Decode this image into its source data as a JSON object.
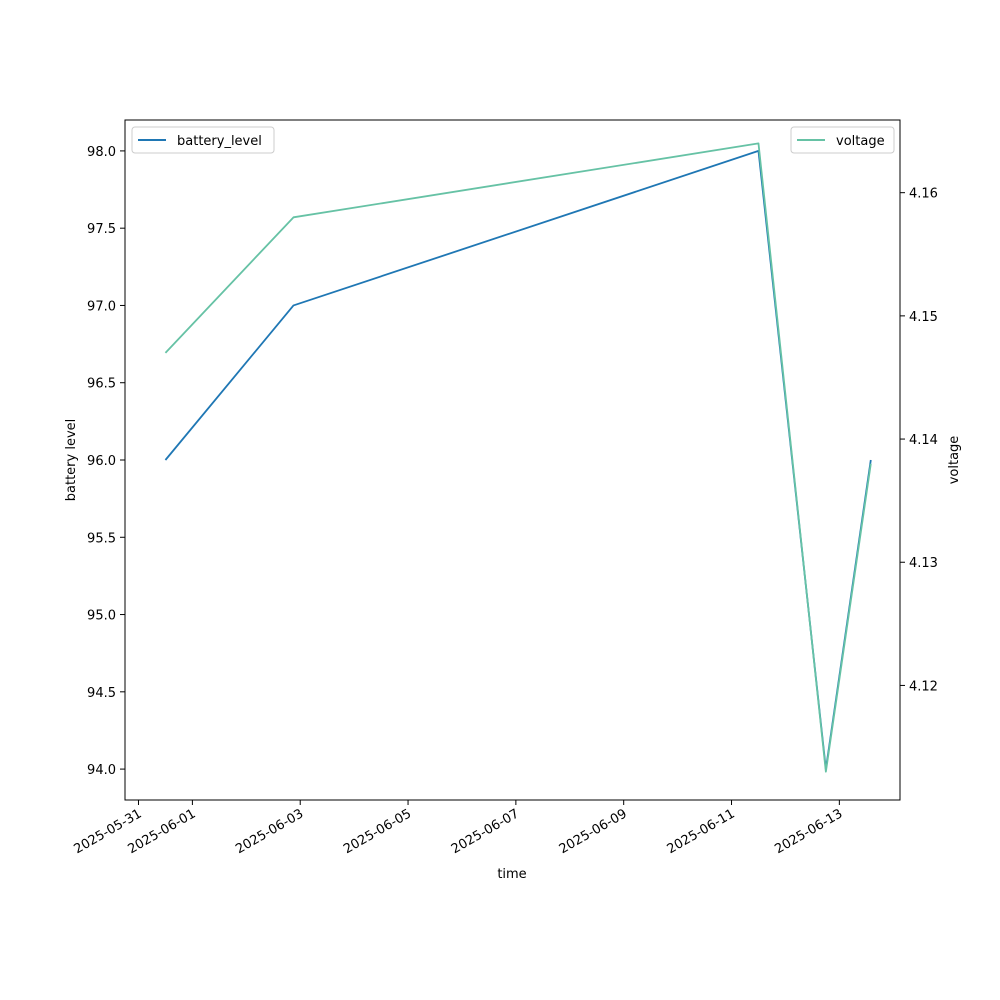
{
  "chart_data": {
    "type": "line",
    "xlabel": "time",
    "ylabel": "battery level",
    "y2label": "voltage",
    "x_ticks": [
      "2025-05-31",
      "2025-06-01",
      "2025-06-03",
      "2025-06-05",
      "2025-06-07",
      "2025-06-09",
      "2025-06-11",
      "2025-06-13"
    ],
    "xlim": [
      "2025-05-30 18:00",
      "2025-06-14 03:00"
    ],
    "y_ticks": [
      94.0,
      94.5,
      95.0,
      95.5,
      96.0,
      96.5,
      97.0,
      97.5,
      98.0
    ],
    "ylim": [
      93.8,
      98.2
    ],
    "y2_ticks": [
      4.12,
      4.13,
      4.14,
      4.15,
      4.16
    ],
    "y2lim": [
      4.1107,
      4.1659
    ],
    "grid": false,
    "series": [
      {
        "name": "battery_level",
        "axis": "left",
        "color": "#1f77b4",
        "legend": "upper-left",
        "x": [
          "2025-05-31 12:00",
          "2025-06-02 21:00",
          "2025-06-11 12:00",
          "2025-06-12 18:00",
          "2025-06-13 14:00"
        ],
        "values": [
          96.0,
          97.0,
          98.0,
          94.0,
          96.0
        ]
      },
      {
        "name": "voltage",
        "axis": "right",
        "color": "#66c2a5",
        "legend": "upper-right",
        "x": [
          "2025-05-31 12:00",
          "2025-06-02 21:00",
          "2025-06-11 12:00",
          "2025-06-12 18:00",
          "2025-06-13 14:00"
        ],
        "values": [
          4.147,
          4.158,
          4.164,
          4.113,
          4.138
        ]
      }
    ]
  }
}
